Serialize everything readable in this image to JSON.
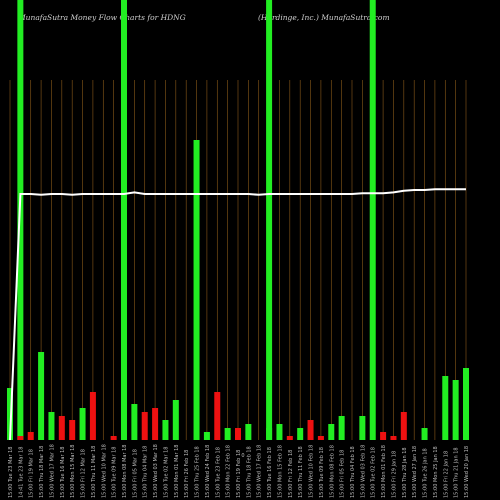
{
  "chart_data": {
    "type": "bar",
    "title_left": "MunafaSutra  Money Flow  Charts for HDNG",
    "title_right": "(Hardinge,  Inc.) MunafaSutra.com",
    "center_label": "0",
    "ylim": [
      0,
      100
    ],
    "grid": "vertical",
    "colors": {
      "up": "#22ee22",
      "down": "#ee1111",
      "line": "#ffffff",
      "grid": "#8a5a1a",
      "background": "#000000"
    },
    "categories": [
      "15:00 Tue 23 Mar 18",
      "14:41 Tue 23 Mar 18",
      "15:00 Fri 19 Mar 18",
      "15:00 Thu 18 Mar 18",
      "15:00 Wed 17 Mar 18",
      "15:00 Tue 16 Mar 18",
      "15:00 Mon 15 Mar 18",
      "15:00 Fri 12 Mar 18",
      "15:00 Thu 11 Mar 18",
      "15:00 Wed 10 Mar 18",
      "15:00 Tue 09 Mar 18",
      "15:00 Mon 08 Mar 18",
      "15:00 Fri 05 Mar 18",
      "15:00 Thu 04 Mar 18",
      "15:00 Wed 03 Mar 18",
      "15:00 Tue 02 Mar 18",
      "15:00 Mon 01 Mar 18",
      "15:00 Fri 26 Feb 18",
      "15:00 Thu 25 Feb 18",
      "15:00 Wed 24 Feb 18",
      "15:00 Tue 23 Feb 18",
      "15:00 Mon 22 Feb 18",
      "15:00 Fri 19 Feb 18",
      "15:00 Thu 18 Feb 18",
      "15:00 Wed 17 Feb 18",
      "15:00 Tue 16 Feb 18",
      "15:00 Mon 15 Feb 18",
      "15:00 Fri 12 Feb 18",
      "15:00 Thu 11 Feb 18",
      "15:00 Wed 10 Feb 18",
      "15:00 Tue 09 Feb 18",
      "15:00 Mon 08 Feb 18",
      "15:00 Fri 05 Feb 18",
      "15:00 Thu 04 Feb 18",
      "15:00 Wed 03 Feb 18",
      "15:00 Tue 02 Feb 18",
      "15:00 Mon 01 Feb 18",
      "15:00 Fri 29 Jan 18",
      "15:00 Thu 28 Jan 18",
      "15:00 Wed 27 Jan 18",
      "15:00 Tue 26 Jan 18",
      "15:00 Mon 25 Jan 18",
      "15:00 Fri 22 Jan 18",
      "15:00 Thu 21 Jan 18",
      "15:00 Wed 20 Jan 18"
    ],
    "series": [
      {
        "values": [
          13,
          1,
          2,
          22,
          7,
          6,
          5,
          8,
          12,
          0,
          1,
          0,
          9,
          7,
          8,
          5,
          10,
          0,
          75,
          2,
          12,
          3,
          3,
          4,
          0,
          3,
          4,
          1,
          3,
          5,
          1,
          4,
          6,
          0,
          6,
          0,
          2,
          1,
          7,
          0,
          3,
          0,
          16,
          15,
          18
        ],
        "directions": [
          "up",
          "down",
          "down",
          "up",
          "up",
          "down",
          "down",
          "up",
          "down",
          "up",
          "down",
          "down",
          "up",
          "down",
          "down",
          "up",
          "up",
          "up",
          "up",
          "up",
          "down",
          "up",
          "down",
          "up",
          "up",
          "up",
          "up",
          "down",
          "up",
          "down",
          "down",
          "up",
          "up",
          "up",
          "up",
          "up",
          "down",
          "down",
          "down",
          "up",
          "up",
          "up",
          "up",
          "up",
          "up"
        ],
        "highlight": [
          false,
          true,
          false,
          false,
          false,
          false,
          false,
          false,
          false,
          false,
          false,
          true,
          false,
          false,
          false,
          false,
          false,
          false,
          false,
          false,
          false,
          false,
          false,
          false,
          false,
          true,
          false,
          false,
          false,
          false,
          false,
          false,
          false,
          false,
          false,
          true,
          false,
          false,
          false,
          false,
          false,
          false,
          false,
          false,
          false
        ]
      }
    ],
    "line_values": [
      0,
      100,
      100,
      99.5,
      100,
      100,
      99.5,
      100,
      100,
      100,
      100,
      100,
      101,
      100,
      100,
      100,
      100,
      100,
      100,
      100,
      100,
      100,
      100,
      100,
      99.5,
      100,
      100,
      100,
      100,
      100,
      100,
      100,
      100,
      100,
      100.5,
      100.5,
      100.5,
      101,
      102,
      102.5,
      102.5,
      103,
      103,
      103,
      103
    ]
  }
}
